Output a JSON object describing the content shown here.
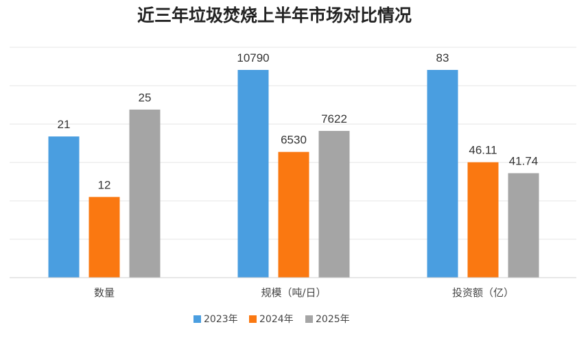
{
  "chart_data": {
    "type": "bar",
    "title": "近三年垃圾焚烧上半年市场对比情况",
    "categories": [
      "数量",
      "规模（吨/日）",
      "投资额（亿）"
    ],
    "series": [
      {
        "name": "2023年",
        "color": "#4a9ee0",
        "values": [
          21,
          10790,
          83
        ]
      },
      {
        "name": "2024年",
        "color": "#fa7811",
        "values": [
          12,
          6530,
          46.11
        ]
      },
      {
        "name": "2025年",
        "color": "#a5a5a5",
        "values": [
          25,
          7622,
          41.74
        ]
      }
    ],
    "data_labels": [
      [
        "21",
        "10790",
        "83"
      ],
      [
        "12",
        "6530",
        "46.11"
      ],
      [
        "25",
        "7622",
        "41.74"
      ]
    ],
    "grid": true,
    "legend_position": "bottom"
  }
}
